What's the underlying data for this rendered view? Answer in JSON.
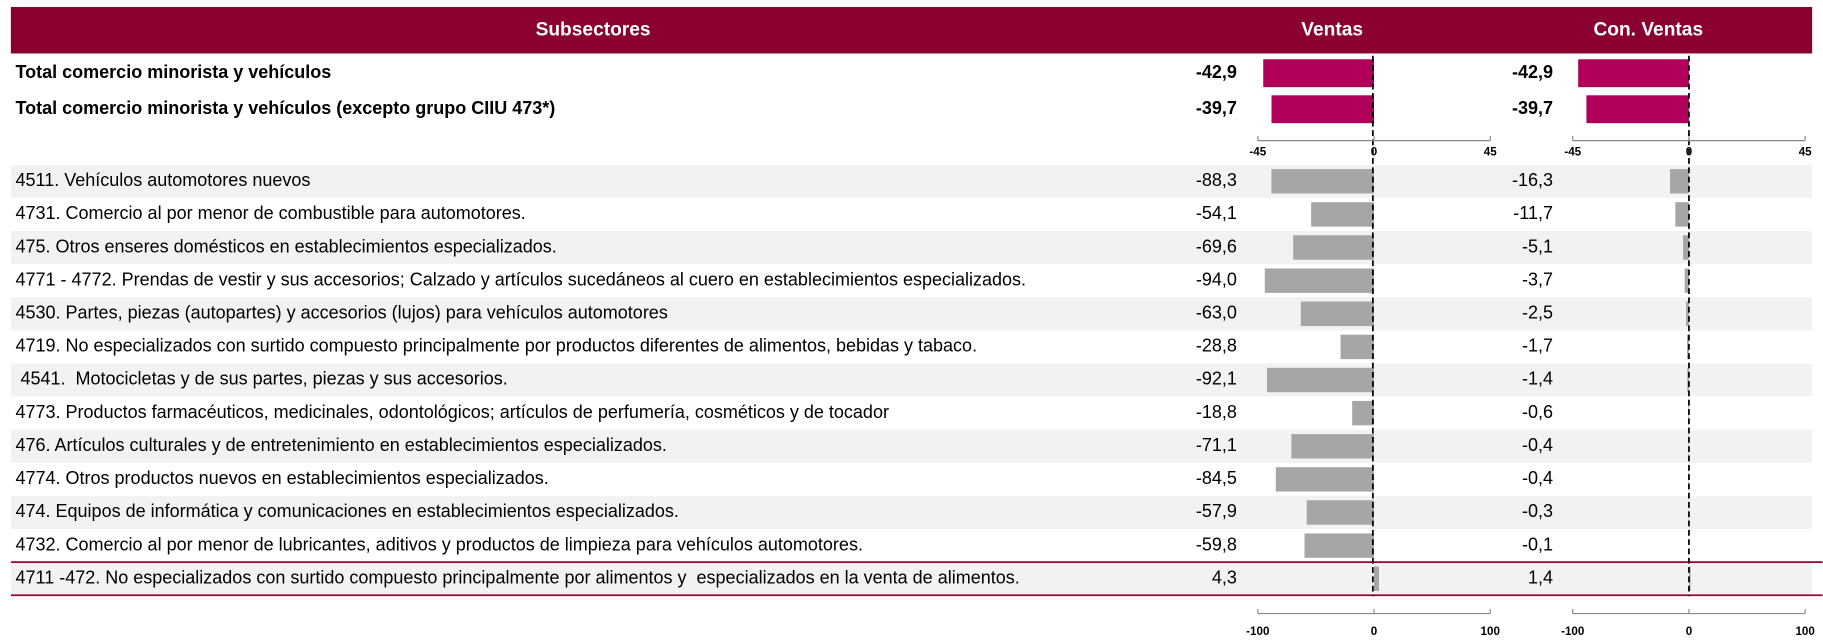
{
  "header": {
    "columns": [
      "Subsectores",
      "Ventas",
      "Con. Ventas"
    ]
  },
  "totals": [
    {
      "name": "Total comercio minorista y vehículos",
      "ventas": -42.9,
      "ventas_label": "-42,9",
      "con_ventas": -42.9,
      "con_ventas_label": "-42,9"
    },
    {
      "name": "Total comercio minorista y vehículos (excepto grupo CIIU 473*)",
      "ventas": -39.7,
      "ventas_label": "-39,7",
      "con_ventas": -39.7,
      "con_ventas_label": "-39,7"
    }
  ],
  "totals_axis": {
    "ventas": {
      "xlim": [
        -45,
        45
      ],
      "xticks": [
        -45,
        0,
        45
      ]
    },
    "con_ventas": {
      "xlim": [
        -45,
        45
      ],
      "xticks": [
        -45,
        0,
        45
      ]
    }
  },
  "rows": [
    {
      "name": "4511. Vehículos automotores nuevos",
      "ventas": -88.3,
      "ventas_label": "-88,3",
      "con_ventas": -16.3,
      "con_ventas_label": "-16,3"
    },
    {
      "name": "4731. Comercio al por menor de combustible para automotores.",
      "ventas": -54.1,
      "ventas_label": "-54,1",
      "con_ventas": -11.7,
      "con_ventas_label": "-11,7"
    },
    {
      "name": "475. Otros enseres domésticos en establecimientos especializados.",
      "ventas": -69.6,
      "ventas_label": "-69,6",
      "con_ventas": -5.1,
      "con_ventas_label": "-5,1"
    },
    {
      "name": "4771 - 4772. Prendas de vestir y sus accesorios; Calzado y artículos sucedáneos al cuero en establecimientos especializados.",
      "ventas": -94.0,
      "ventas_label": "-94,0",
      "con_ventas": -3.7,
      "con_ventas_label": "-3,7"
    },
    {
      "name": "4530. Partes, piezas (autopartes) y accesorios (lujos) para vehículos automotores",
      "ventas": -63.0,
      "ventas_label": "-63,0",
      "con_ventas": -2.5,
      "con_ventas_label": "-2,5"
    },
    {
      "name": "4719. No especializados con surtido compuesto principalmente por productos diferentes de alimentos, bebidas y tabaco.",
      "ventas": -28.8,
      "ventas_label": "-28,8",
      "con_ventas": -1.7,
      "con_ventas_label": "-1,7"
    },
    {
      "name": " 4541.  Motocicletas y de sus partes, piezas y sus accesorios.",
      "ventas": -92.1,
      "ventas_label": "-92,1",
      "con_ventas": -1.4,
      "con_ventas_label": "-1,4"
    },
    {
      "name": "4773. Productos farmacéuticos, medicinales, odontológicos; artículos de perfumería, cosméticos y de tocador",
      "ventas": -18.8,
      "ventas_label": "-18,8",
      "con_ventas": -0.6,
      "con_ventas_label": "-0,6"
    },
    {
      "name": "476. Artículos culturales y de entretenimiento en establecimientos especializados.",
      "ventas": -71.1,
      "ventas_label": "-71,1",
      "con_ventas": -0.4,
      "con_ventas_label": "-0,4"
    },
    {
      "name": "4774. Otros productos nuevos en establecimientos especializados.",
      "ventas": -84.5,
      "ventas_label": "-84,5",
      "con_ventas": -0.4,
      "con_ventas_label": "-0,4"
    },
    {
      "name": "474. Equipos de informática y comunicaciones en establecimientos especializados.",
      "ventas": -57.9,
      "ventas_label": "-57,9",
      "con_ventas": -0.3,
      "con_ventas_label": "-0,3"
    },
    {
      "name": "4732. Comercio al por menor de lubricantes, aditivos y productos de limpieza para vehículos automotores.",
      "ventas": -59.8,
      "ventas_label": "-59,8",
      "con_ventas": -0.1,
      "con_ventas_label": "-0,1"
    },
    {
      "name": "4711 -472. No especializados con surtido compuesto principalmente por alimentos y  especializados en la venta de alimentos.",
      "ventas": 4.3,
      "ventas_label": "4,3",
      "con_ventas": 1.4,
      "con_ventas_label": "1,4"
    }
  ],
  "rows_axis": {
    "ventas": {
      "xlim": [
        -100,
        100
      ],
      "xticks": [
        -100,
        0,
        100
      ]
    },
    "con_ventas": {
      "xlim": [
        -100,
        100
      ],
      "xticks": [
        -100,
        0,
        100
      ]
    }
  },
  "colors": {
    "header": "#8a0030",
    "total_bar": "#b0005a",
    "row_bar": "#a6a6a6",
    "stripe": "#f2f2f2",
    "highlight": "#a0003a"
  }
}
